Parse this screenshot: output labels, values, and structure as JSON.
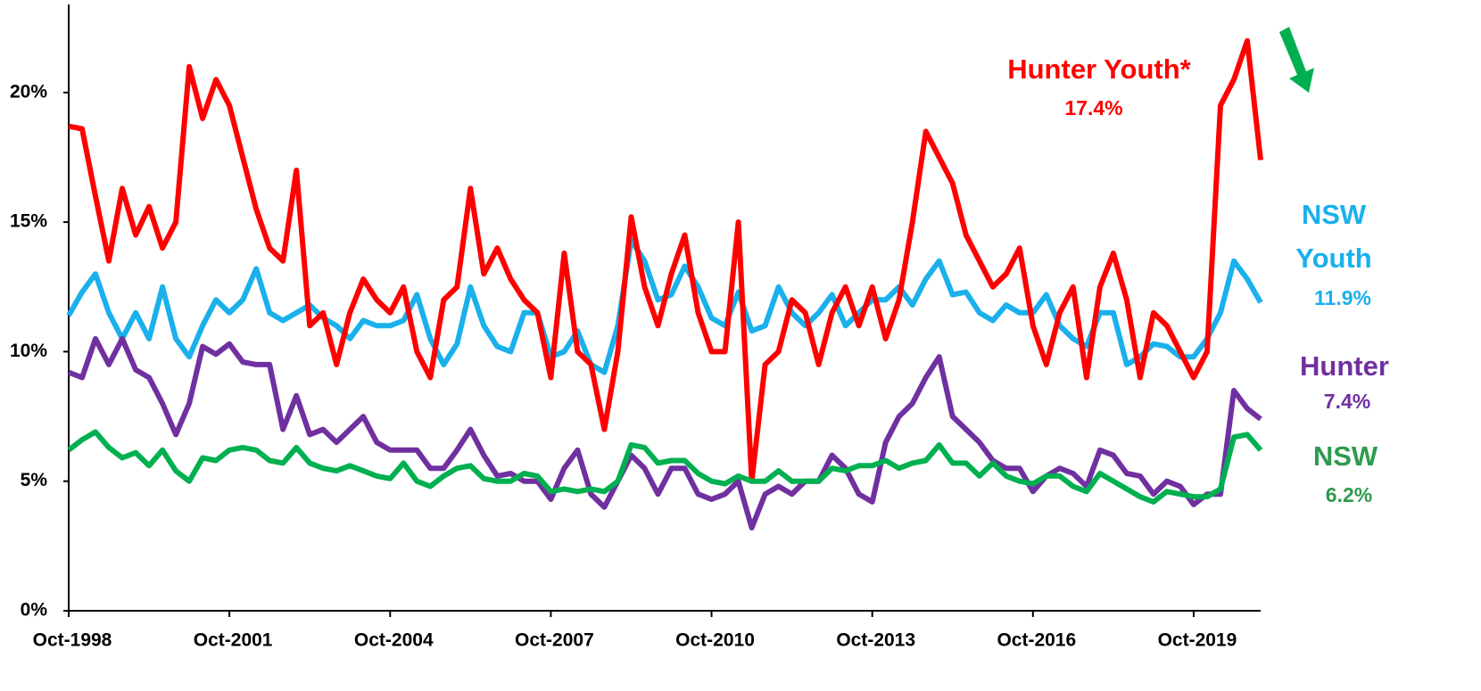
{
  "chart_data": {
    "type": "line",
    "categories": [
      "Oct-1998",
      null,
      null,
      null,
      null,
      null,
      null,
      null,
      null,
      null,
      null,
      null,
      "Oct-2001",
      null,
      null,
      null,
      null,
      null,
      null,
      null,
      null,
      null,
      null,
      null,
      "Oct-2004",
      null,
      null,
      null,
      null,
      null,
      null,
      null,
      null,
      null,
      null,
      null,
      "Oct-2007",
      null,
      null,
      null,
      null,
      null,
      null,
      null,
      null,
      null,
      null,
      null,
      "Oct-2010",
      null,
      null,
      null,
      null,
      null,
      null,
      null,
      null,
      null,
      null,
      null,
      "Oct-2013",
      null,
      null,
      null,
      null,
      null,
      null,
      null,
      null,
      null,
      null,
      null,
      "Oct-2016",
      null,
      null,
      null,
      null,
      null,
      null,
      null,
      null,
      null,
      null,
      null,
      "Oct-2019",
      null,
      null,
      null,
      null,
      null
    ],
    "ylim": [
      0,
      23.4
    ],
    "yticks": [
      {
        "value": 0,
        "label": "0%"
      },
      {
        "value": 5,
        "label": "5%"
      },
      {
        "value": 10,
        "label": "10%"
      },
      {
        "value": 15,
        "label": "15%"
      },
      {
        "value": 20,
        "label": "20%"
      }
    ],
    "series": [
      {
        "name": "Hunter Youth*",
        "color": "#ff0000",
        "end_label": "17.4%",
        "values": [
          18.7,
          18.6,
          16,
          13.5,
          16.3,
          14.5,
          15.6,
          14,
          15,
          21,
          19,
          20.5,
          19.5,
          17.5,
          15.5,
          14,
          13.5,
          17,
          11,
          11.5,
          9.5,
          11.5,
          12.8,
          12,
          11.5,
          12.5,
          10,
          9,
          12,
          12.5,
          16.3,
          13,
          14,
          12.8,
          12,
          11.5,
          9,
          13.8,
          10,
          9.5,
          7,
          10,
          15.2,
          12.5,
          11,
          13,
          14.5,
          11.5,
          10,
          10,
          15,
          5,
          9.5,
          10,
          12,
          11.5,
          9.5,
          11.5,
          12.5,
          11,
          12.5,
          10.5,
          12,
          15,
          18.5,
          17.5,
          16.5,
          14.5,
          13.5,
          12.5,
          13,
          14,
          11,
          9.5,
          11.5,
          12.5,
          9,
          12.5,
          13.8,
          12,
          9,
          11.5,
          11,
          10,
          9,
          10,
          19.5,
          20.5,
          22,
          17.4
        ]
      },
      {
        "name": "NSW Youth",
        "color": "#1ab0ec",
        "end_label": "11.9%",
        "values": [
          11.4,
          12.3,
          13,
          11.5,
          10.5,
          11.5,
          10.5,
          12.5,
          10.5,
          9.8,
          11,
          12,
          11.5,
          12,
          13.2,
          11.5,
          11.2,
          11.5,
          11.8,
          11.3,
          11,
          10.5,
          11.2,
          11,
          11,
          11.2,
          12.2,
          10.5,
          9.5,
          10.3,
          12.5,
          11,
          10.2,
          10,
          11.5,
          11.5,
          9.8,
          10,
          10.8,
          9.5,
          9.2,
          11,
          14.3,
          13.5,
          12,
          12.2,
          13.3,
          12.5,
          11.3,
          11,
          12.3,
          10.8,
          11,
          12.5,
          11.5,
          11,
          11.5,
          12.2,
          11,
          11.5,
          12,
          12,
          12.5,
          11.8,
          12.8,
          13.5,
          12.2,
          12.3,
          11.5,
          11.2,
          11.8,
          11.5,
          11.5,
          12.2,
          11,
          10.5,
          10.2,
          11.5,
          11.5,
          9.5,
          9.8,
          10.3,
          10.2,
          9.8,
          9.8,
          10.5,
          11.5,
          13.5,
          12.8,
          11.9
        ]
      },
      {
        "name": "Hunter",
        "color": "#7030a0",
        "end_label": "7.4%",
        "values": [
          9.2,
          9,
          10.5,
          9.5,
          10.5,
          9.3,
          9,
          8,
          6.8,
          8,
          10.2,
          9.9,
          10.3,
          9.6,
          9.5,
          9.5,
          7,
          8.3,
          6.8,
          7,
          6.5,
          7,
          7.5,
          6.5,
          6.2,
          6.2,
          6.2,
          5.5,
          5.5,
          6.2,
          7,
          6,
          5.2,
          5.3,
          5,
          5,
          4.3,
          5.5,
          6.2,
          4.5,
          4,
          5,
          6,
          5.5,
          4.5,
          5.5,
          5.5,
          4.5,
          4.3,
          4.5,
          5,
          3.2,
          4.5,
          4.8,
          4.5,
          5,
          5,
          6,
          5.5,
          4.5,
          4.2,
          6.5,
          7.5,
          8,
          9,
          9.8,
          7.5,
          7,
          6.5,
          5.8,
          5.5,
          5.5,
          4.6,
          5.2,
          5.5,
          5.3,
          4.8,
          6.2,
          6,
          5.3,
          5.2,
          4.5,
          5,
          4.8,
          4.1,
          4.5,
          4.5,
          8.5,
          7.8,
          7.4
        ]
      },
      {
        "name": "NSW",
        "color": "#00b050",
        "end_label": "6.2%",
        "values": [
          6.2,
          6.6,
          6.9,
          6.3,
          5.9,
          6.1,
          5.6,
          6.2,
          5.4,
          5,
          5.9,
          5.8,
          6.2,
          6.3,
          6.2,
          5.8,
          5.7,
          6.3,
          5.7,
          5.5,
          5.4,
          5.6,
          5.4,
          5.2,
          5.1,
          5.7,
          5,
          4.8,
          5.2,
          5.5,
          5.6,
          5.1,
          5,
          5,
          5.3,
          5.2,
          4.6,
          4.7,
          4.6,
          4.7,
          4.6,
          5,
          6.4,
          6.3,
          5.7,
          5.8,
          5.8,
          5.3,
          5,
          4.9,
          5.2,
          5,
          5,
          5.4,
          5,
          5,
          5,
          5.5,
          5.4,
          5.6,
          5.6,
          5.8,
          5.5,
          5.7,
          5.8,
          6.4,
          5.7,
          5.7,
          5.2,
          5.7,
          5.2,
          5,
          4.9,
          5.2,
          5.2,
          4.8,
          4.6,
          5.3,
          5,
          4.7,
          4.4,
          4.2,
          4.6,
          4.5,
          4.4,
          4.4,
          4.7,
          6.7,
          6.8,
          6.2
        ]
      }
    ]
  }
}
